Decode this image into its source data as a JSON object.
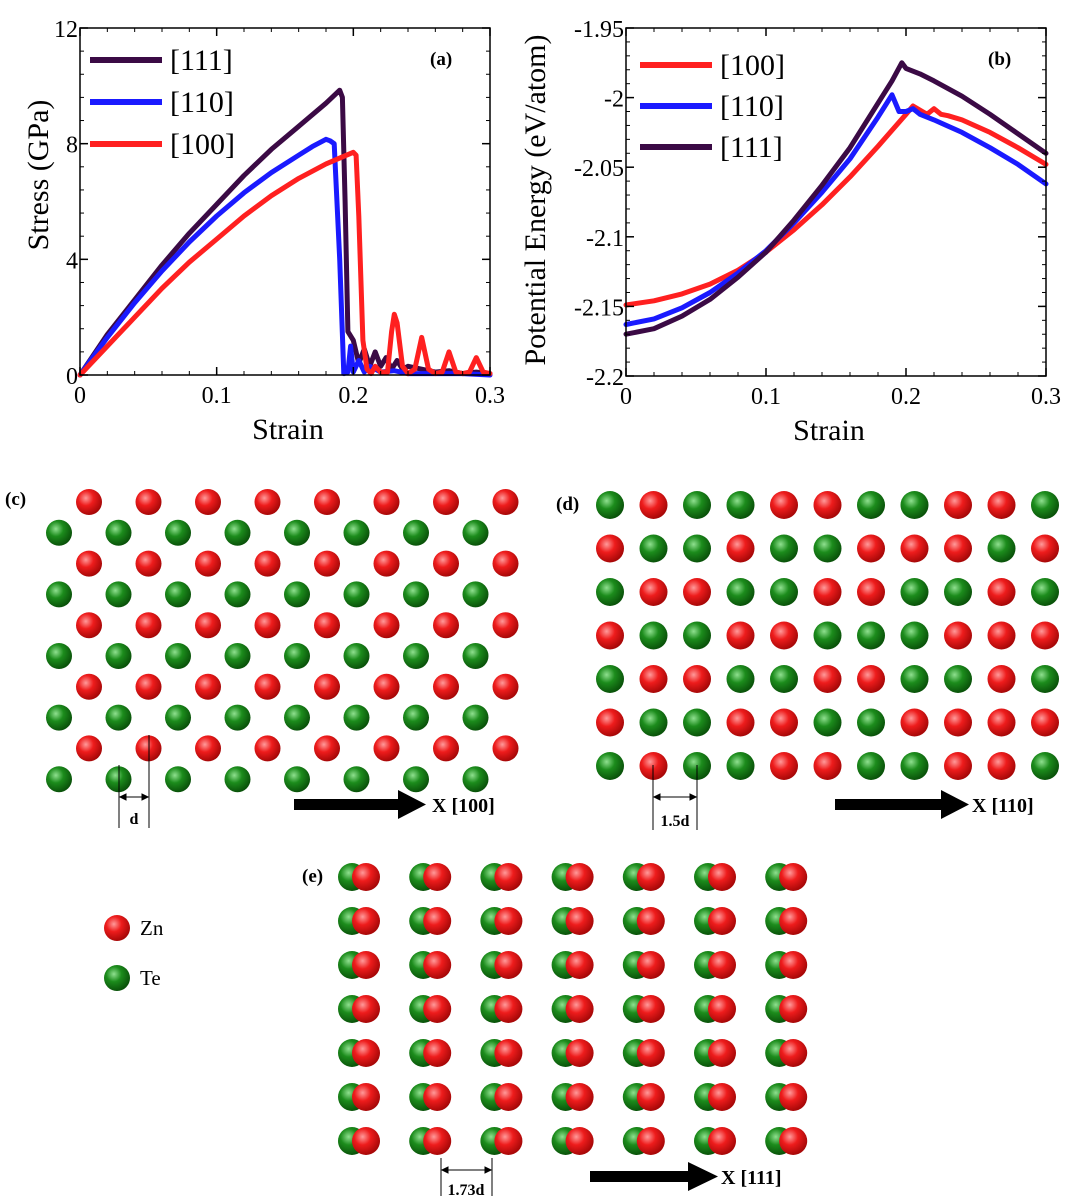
{
  "chart_data": [
    {
      "type": "line",
      "panel_label": "(a)",
      "xlabel": "Strain",
      "ylabel": "Stress (GPa)",
      "xlim": [
        0,
        0.3
      ],
      "ylim": [
        0,
        12
      ],
      "xticks": [
        0,
        0.1,
        0.2,
        0.3
      ],
      "xtick_labels": [
        "0",
        "0.1",
        "0.2",
        "0.3"
      ],
      "yticks": [
        0,
        4,
        8,
        12
      ],
      "ytick_labels": [
        "0",
        "4",
        "8",
        "12"
      ],
      "legend_position": "top-left",
      "series": [
        {
          "name": "[111]",
          "color": "#3b0a45",
          "x": [
            0,
            0.02,
            0.04,
            0.06,
            0.08,
            0.1,
            0.12,
            0.14,
            0.16,
            0.18,
            0.19,
            0.192,
            0.194,
            0.196,
            0.2,
            0.204,
            0.208,
            0.212,
            0.216,
            0.22,
            0.224,
            0.228,
            0.232,
            0.236,
            0.24,
            0.25,
            0.26,
            0.27,
            0.28,
            0.29,
            0.3
          ],
          "y": [
            0,
            1.4,
            2.6,
            3.8,
            4.9,
            5.9,
            6.9,
            7.8,
            8.6,
            9.4,
            9.85,
            9.6,
            6.0,
            1.5,
            1.2,
            0.4,
            0.9,
            0.3,
            0.8,
            0.3,
            0.6,
            0.2,
            0.5,
            0.2,
            0.3,
            0.2,
            0.1,
            0.15,
            0.05,
            0.1,
            0.05
          ]
        },
        {
          "name": "[110]",
          "color": "#1a1aff",
          "x": [
            0,
            0.02,
            0.04,
            0.06,
            0.08,
            0.1,
            0.12,
            0.14,
            0.16,
            0.17,
            0.18,
            0.183,
            0.186,
            0.19,
            0.193,
            0.196,
            0.198,
            0.2,
            0.204,
            0.208,
            0.212,
            0.22,
            0.23,
            0.24,
            0.26,
            0.28,
            0.3
          ],
          "y": [
            0,
            1.3,
            2.5,
            3.6,
            4.6,
            5.5,
            6.3,
            7.0,
            7.6,
            7.9,
            8.15,
            8.1,
            8.0,
            4.0,
            0.05,
            0.1,
            1.0,
            0.1,
            0.5,
            0.1,
            0.3,
            0.1,
            0.15,
            0.05,
            0.05,
            0.05,
            0.0
          ]
        },
        {
          "name": "[100]",
          "color": "#ff2020",
          "x": [
            0,
            0.02,
            0.04,
            0.06,
            0.08,
            0.1,
            0.12,
            0.14,
            0.16,
            0.18,
            0.19,
            0.2,
            0.202,
            0.204,
            0.207,
            0.21,
            0.213,
            0.216,
            0.22,
            0.225,
            0.228,
            0.23,
            0.232,
            0.236,
            0.24,
            0.245,
            0.25,
            0.255,
            0.26,
            0.265,
            0.27,
            0.275,
            0.28,
            0.285,
            0.29,
            0.295,
            0.3
          ],
          "y": [
            0,
            1.0,
            2.0,
            3.0,
            3.9,
            4.7,
            5.5,
            6.2,
            6.8,
            7.3,
            7.5,
            7.7,
            7.6,
            5.5,
            1.2,
            0.2,
            0.05,
            0.3,
            0.1,
            0.1,
            1.5,
            2.1,
            1.8,
            0.3,
            0.05,
            0.2,
            1.3,
            0.2,
            0.05,
            0.1,
            0.8,
            0.1,
            0.05,
            0.1,
            0.6,
            0.1,
            0.05
          ]
        }
      ]
    },
    {
      "type": "line",
      "panel_label": "(b)",
      "xlabel": "Strain",
      "ylabel": "Potential Energy (eV/atom)",
      "xlim": [
        0,
        0.3
      ],
      "ylim": [
        -2.2,
        -1.95
      ],
      "xticks": [
        0,
        0.1,
        0.2,
        0.3
      ],
      "xtick_labels": [
        "0",
        "0.1",
        "0.2",
        "0.3"
      ],
      "yticks": [
        -1.95,
        -2.0,
        -2.05,
        -2.1,
        -2.15,
        -2.2
      ],
      "ytick_labels": [
        "-1.95",
        "-2",
        "-2.05",
        "-2.1",
        "-2.15",
        "-2.2"
      ],
      "legend_position": "top-left",
      "series": [
        {
          "name": "[100]",
          "color": "#ff2020",
          "x": [
            0,
            0.02,
            0.04,
            0.06,
            0.08,
            0.1,
            0.12,
            0.14,
            0.16,
            0.18,
            0.2,
            0.205,
            0.21,
            0.215,
            0.22,
            0.225,
            0.23,
            0.24,
            0.26,
            0.28,
            0.3
          ],
          "y": [
            -2.149,
            -2.146,
            -2.141,
            -2.134,
            -2.124,
            -2.111,
            -2.095,
            -2.077,
            -2.057,
            -2.035,
            -2.012,
            -2.006,
            -2.009,
            -2.012,
            -2.008,
            -2.012,
            -2.013,
            -2.016,
            -2.025,
            -2.036,
            -2.048
          ]
        },
        {
          "name": "[110]",
          "color": "#1a1aff",
          "x": [
            0,
            0.02,
            0.04,
            0.06,
            0.08,
            0.1,
            0.12,
            0.14,
            0.16,
            0.18,
            0.19,
            0.195,
            0.2,
            0.205,
            0.21,
            0.22,
            0.24,
            0.26,
            0.28,
            0.3
          ],
          "y": [
            -2.163,
            -2.159,
            -2.151,
            -2.14,
            -2.126,
            -2.11,
            -2.09,
            -2.068,
            -2.044,
            -2.014,
            -1.998,
            -2.01,
            -2.01,
            -2.008,
            -2.012,
            -2.016,
            -2.025,
            -2.036,
            -2.048,
            -2.062
          ]
        },
        {
          "name": "[111]",
          "color": "#3b0a45",
          "x": [
            0,
            0.02,
            0.04,
            0.06,
            0.08,
            0.1,
            0.12,
            0.14,
            0.16,
            0.18,
            0.19,
            0.197,
            0.2,
            0.205,
            0.21,
            0.22,
            0.24,
            0.26,
            0.28,
            0.3
          ],
          "y": [
            -2.17,
            -2.166,
            -2.157,
            -2.145,
            -2.129,
            -2.111,
            -2.088,
            -2.063,
            -2.036,
            -2.004,
            -1.988,
            -1.975,
            -1.979,
            -1.981,
            -1.983,
            -1.988,
            -1.999,
            -2.012,
            -2.026,
            -2.04
          ]
        }
      ]
    }
  ],
  "lattice": {
    "colors": {
      "zn": "#ee1c1c",
      "te": "#1c8c1c"
    },
    "legend": [
      {
        "name": "Zn",
        "color": "#ee1c1c"
      },
      {
        "name": "Te",
        "color": "#1c8c1c"
      }
    ],
    "panels": [
      {
        "label": "(c)",
        "spacing_label": "d",
        "direction_label": "X [100]",
        "pattern": "hexagonal",
        "rows": 10,
        "columns": 8
      },
      {
        "label": "(d)",
        "spacing_label": "1.5d",
        "direction_label": "X [110]",
        "pattern": "checker",
        "rows": 7,
        "columns": 11
      },
      {
        "label": "(e)",
        "spacing_label": "1.73d",
        "direction_label": "X [111]",
        "pattern": "pairs",
        "rows": 7,
        "columns": 7
      }
    ]
  }
}
